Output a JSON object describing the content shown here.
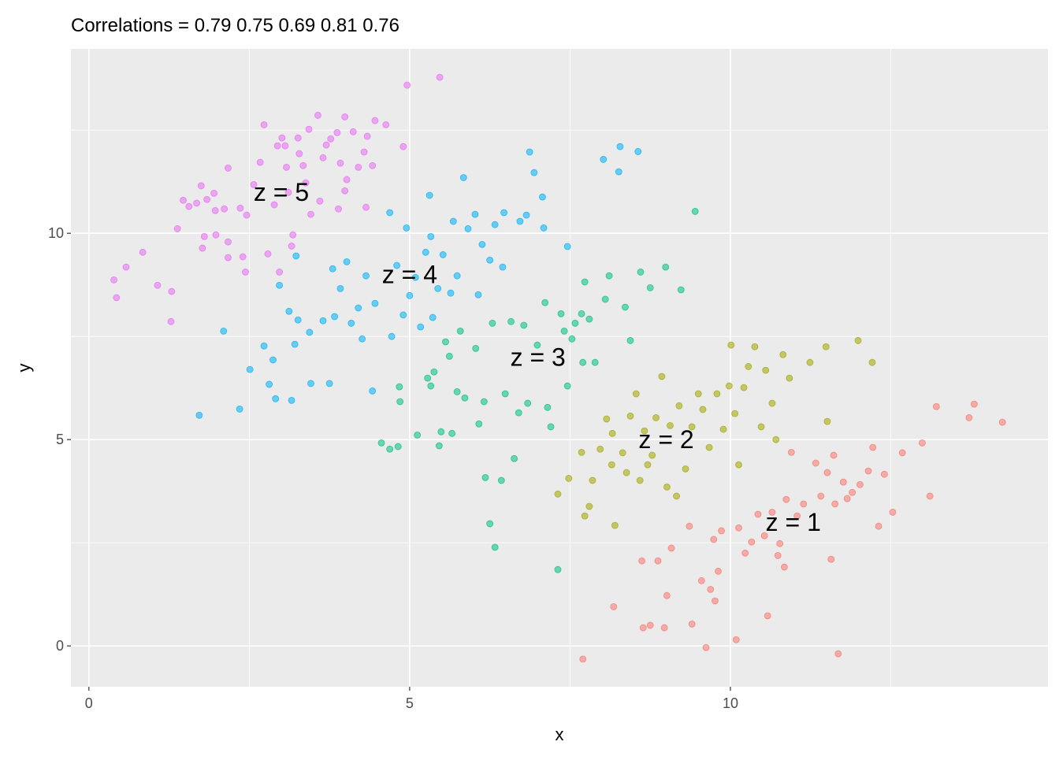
{
  "chart_data": {
    "type": "scatter",
    "title": "Correlations = 0.79 0.75 0.69 0.81 0.76",
    "xlabel": "x",
    "ylabel": "y",
    "xlim": [
      -0.28,
      14.95
    ],
    "ylim": [
      -0.99,
      14.47
    ],
    "x_ticks": [
      0,
      5,
      10
    ],
    "y_ticks": [
      0,
      5,
      10
    ],
    "x_minor": [
      2.5,
      7.5,
      12.5
    ],
    "y_minor": [
      2.5,
      7.5,
      12.5
    ],
    "grid": true,
    "background": "#EBEBEB",
    "series": [
      {
        "group": "z = 1",
        "color": "#F8766D",
        "label_pos": [
          10.98,
          3.0
        ],
        "points": [
          [
            7.7,
            -0.32
          ],
          [
            8.18,
            0.95
          ],
          [
            8.62,
            2.06
          ],
          [
            8.64,
            0.44
          ],
          [
            8.75,
            0.5
          ],
          [
            8.87,
            2.06
          ],
          [
            8.97,
            0.44
          ],
          [
            9.01,
            1.22
          ],
          [
            9.08,
            2.37
          ],
          [
            9.36,
            2.9
          ],
          [
            9.4,
            0.53
          ],
          [
            9.55,
            1.58
          ],
          [
            9.62,
            -0.04
          ],
          [
            9.69,
            1.37
          ],
          [
            9.74,
            2.58
          ],
          [
            9.76,
            1.09
          ],
          [
            9.81,
            1.81
          ],
          [
            9.86,
            2.79
          ],
          [
            10.09,
            0.15
          ],
          [
            10.13,
            2.86
          ],
          [
            10.23,
            2.25
          ],
          [
            10.33,
            2.52
          ],
          [
            10.43,
            3.19
          ],
          [
            10.53,
            2.67
          ],
          [
            10.58,
            0.73
          ],
          [
            10.65,
            3.24
          ],
          [
            10.74,
            2.19
          ],
          [
            10.77,
            2.48
          ],
          [
            10.84,
            1.91
          ],
          [
            10.87,
            3.55
          ],
          [
            10.95,
            4.69
          ],
          [
            11.04,
            3.15
          ],
          [
            11.14,
            3.44
          ],
          [
            11.33,
            4.43
          ],
          [
            11.41,
            3.63
          ],
          [
            11.51,
            4.2
          ],
          [
            11.57,
            2.1
          ],
          [
            11.63,
            3.44
          ],
          [
            11.68,
            -0.19
          ],
          [
            11.76,
            3.97
          ],
          [
            11.82,
            3.57
          ],
          [
            11.9,
            3.72
          ],
          [
            12.02,
            3.91
          ],
          [
            12.15,
            4.24
          ],
          [
            12.22,
            4.81
          ],
          [
            12.31,
            2.9
          ],
          [
            12.4,
            4.16
          ],
          [
            12.53,
            3.24
          ],
          [
            12.68,
            4.68
          ],
          [
            12.99,
            4.92
          ],
          [
            13.11,
            3.63
          ],
          [
            13.21,
            5.8
          ],
          [
            13.72,
            5.53
          ],
          [
            13.8,
            5.86
          ],
          [
            14.24,
            5.42
          ],
          [
            11.61,
            4.62
          ]
        ]
      },
      {
        "group": "z = 2",
        "color": "#A3A500",
        "label_pos": [
          9.0,
          5.0
        ],
        "points": [
          [
            7.31,
            3.68
          ],
          [
            7.48,
            4.06
          ],
          [
            7.68,
            4.69
          ],
          [
            7.73,
            3.15
          ],
          [
            7.8,
            3.38
          ],
          [
            7.85,
            4.01
          ],
          [
            7.97,
            4.77
          ],
          [
            8.07,
            5.5
          ],
          [
            8.16,
            5.15
          ],
          [
            8.2,
            2.92
          ],
          [
            8.32,
            4.68
          ],
          [
            8.38,
            4.2
          ],
          [
            8.44,
            5.57
          ],
          [
            8.53,
            6.11
          ],
          [
            8.59,
            4.01
          ],
          [
            8.66,
            5.21
          ],
          [
            8.71,
            4.39
          ],
          [
            8.78,
            4.62
          ],
          [
            8.84,
            5.53
          ],
          [
            8.93,
            6.53
          ],
          [
            9.01,
            3.85
          ],
          [
            9.06,
            5.34
          ],
          [
            9.16,
            3.63
          ],
          [
            9.2,
            5.82
          ],
          [
            9.3,
            4.29
          ],
          [
            9.4,
            5.31
          ],
          [
            9.5,
            6.11
          ],
          [
            9.57,
            5.73
          ],
          [
            9.67,
            4.81
          ],
          [
            9.79,
            6.11
          ],
          [
            9.89,
            5.25
          ],
          [
            9.98,
            6.3
          ],
          [
            10.07,
            5.63
          ],
          [
            10.13,
            4.39
          ],
          [
            10.21,
            6.26
          ],
          [
            10.28,
            6.77
          ],
          [
            10.38,
            7.25
          ],
          [
            10.48,
            5.31
          ],
          [
            10.55,
            6.68
          ],
          [
            10.65,
            5.88
          ],
          [
            10.71,
            5.0
          ],
          [
            10.82,
            7.06
          ],
          [
            10.92,
            6.49
          ],
          [
            11.24,
            6.87
          ],
          [
            11.49,
            7.25
          ],
          [
            11.51,
            5.44
          ],
          [
            11.99,
            7.4
          ],
          [
            12.21,
            6.87
          ],
          [
            10.01,
            7.29
          ],
          [
            8.15,
            4.39
          ]
        ]
      },
      {
        "group": "z = 3",
        "color": "#00BF7D",
        "label_pos": [
          7.0,
          7.0
        ],
        "points": [
          [
            4.56,
            4.92
          ],
          [
            4.69,
            4.77
          ],
          [
            4.82,
            4.83
          ],
          [
            4.84,
            6.28
          ],
          [
            4.85,
            5.92
          ],
          [
            5.12,
            5.11
          ],
          [
            5.28,
            6.49
          ],
          [
            5.33,
            6.3
          ],
          [
            5.38,
            6.64
          ],
          [
            5.46,
            4.85
          ],
          [
            5.49,
            5.19
          ],
          [
            5.56,
            7.37
          ],
          [
            5.62,
            7.02
          ],
          [
            5.66,
            5.15
          ],
          [
            5.74,
            6.16
          ],
          [
            5.79,
            7.63
          ],
          [
            5.86,
            6.01
          ],
          [
            6.03,
            7.21
          ],
          [
            6.08,
            5.38
          ],
          [
            6.16,
            5.92
          ],
          [
            6.18,
            4.08
          ],
          [
            6.25,
            2.96
          ],
          [
            6.29,
            7.82
          ],
          [
            6.33,
            2.39
          ],
          [
            6.43,
            4.01
          ],
          [
            6.49,
            6.11
          ],
          [
            6.58,
            7.86
          ],
          [
            6.63,
            4.54
          ],
          [
            6.7,
            5.65
          ],
          [
            6.78,
            7.77
          ],
          [
            6.84,
            5.88
          ],
          [
            6.99,
            7.29
          ],
          [
            7.11,
            8.32
          ],
          [
            7.15,
            5.78
          ],
          [
            7.2,
            5.31
          ],
          [
            7.31,
            1.85
          ],
          [
            7.36,
            8.05
          ],
          [
            7.41,
            7.63
          ],
          [
            7.46,
            6.3
          ],
          [
            7.53,
            7.44
          ],
          [
            7.58,
            7.82
          ],
          [
            7.68,
            8.05
          ],
          [
            7.7,
            6.87
          ],
          [
            7.73,
            8.82
          ],
          [
            7.8,
            7.92
          ],
          [
            7.89,
            6.87
          ],
          [
            8.05,
            8.4
          ],
          [
            8.11,
            8.97
          ],
          [
            8.36,
            8.21
          ],
          [
            8.44,
            7.4
          ],
          [
            8.6,
            9.06
          ],
          [
            8.75,
            8.68
          ],
          [
            8.99,
            9.18
          ],
          [
            9.23,
            8.63
          ],
          [
            9.45,
            10.53
          ]
        ]
      },
      {
        "group": "z = 4",
        "color": "#00B0F6",
        "label_pos": [
          5.0,
          9.0
        ],
        "points": [
          [
            1.72,
            5.59
          ],
          [
            2.1,
            7.63
          ],
          [
            2.35,
            5.74
          ],
          [
            2.51,
            6.7
          ],
          [
            2.73,
            7.27
          ],
          [
            2.81,
            6.34
          ],
          [
            2.87,
            6.93
          ],
          [
            2.91,
            5.99
          ],
          [
            2.97,
            8.74
          ],
          [
            3.12,
            8.11
          ],
          [
            3.16,
            5.95
          ],
          [
            3.21,
            7.31
          ],
          [
            3.23,
            9.45
          ],
          [
            3.26,
            7.9
          ],
          [
            3.44,
            7.6
          ],
          [
            3.46,
            6.36
          ],
          [
            3.65,
            7.88
          ],
          [
            3.75,
            6.36
          ],
          [
            3.8,
            9.14
          ],
          [
            3.83,
            7.98
          ],
          [
            3.92,
            8.66
          ],
          [
            4.02,
            9.31
          ],
          [
            4.09,
            7.82
          ],
          [
            4.2,
            8.19
          ],
          [
            4.26,
            7.44
          ],
          [
            4.32,
            8.97
          ],
          [
            4.42,
            6.18
          ],
          [
            4.46,
            8.3
          ],
          [
            4.69,
            10.5
          ],
          [
            4.72,
            7.5
          ],
          [
            4.8,
            9.22
          ],
          [
            4.9,
            8.02
          ],
          [
            4.95,
            10.13
          ],
          [
            5.0,
            8.49
          ],
          [
            5.09,
            8.93
          ],
          [
            5.17,
            7.73
          ],
          [
            5.25,
            9.54
          ],
          [
            5.31,
            10.92
          ],
          [
            5.33,
            9.92
          ],
          [
            5.36,
            7.96
          ],
          [
            5.44,
            8.66
          ],
          [
            5.52,
            9.48
          ],
          [
            5.64,
            8.55
          ],
          [
            5.68,
            10.29
          ],
          [
            5.74,
            8.97
          ],
          [
            5.84,
            11.35
          ],
          [
            5.91,
            10.11
          ],
          [
            6.02,
            10.46
          ],
          [
            6.07,
            8.51
          ],
          [
            6.13,
            9.73
          ],
          [
            6.25,
            9.35
          ],
          [
            6.33,
            10.21
          ],
          [
            6.45,
            9.18
          ],
          [
            6.47,
            10.5
          ],
          [
            6.72,
            10.29
          ],
          [
            6.82,
            10.44
          ],
          [
            6.87,
            11.97
          ],
          [
            6.94,
            11.47
          ],
          [
            7.07,
            10.88
          ],
          [
            7.09,
            10.13
          ],
          [
            7.46,
            9.68
          ],
          [
            8.02,
            11.79
          ],
          [
            8.26,
            11.49
          ],
          [
            8.28,
            12.1
          ],
          [
            8.56,
            11.98
          ]
        ]
      },
      {
        "group": "z = 5",
        "color": "#E76BF3",
        "label_pos": [
          3.0,
          11.0
        ],
        "points": [
          [
            4.96,
            13.59
          ],
          [
            5.47,
            13.78
          ],
          [
            0.39,
            8.87
          ],
          [
            0.43,
            8.44
          ],
          [
            0.58,
            9.18
          ],
          [
            0.84,
            9.54
          ],
          [
            1.07,
            8.74
          ],
          [
            1.28,
            7.86
          ],
          [
            1.29,
            8.59
          ],
          [
            1.38,
            10.11
          ],
          [
            1.47,
            10.8
          ],
          [
            1.56,
            10.65
          ],
          [
            1.68,
            10.73
          ],
          [
            1.75,
            11.15
          ],
          [
            1.77,
            9.64
          ],
          [
            1.8,
            9.92
          ],
          [
            1.84,
            10.82
          ],
          [
            1.95,
            10.97
          ],
          [
            1.97,
            10.55
          ],
          [
            1.98,
            9.96
          ],
          [
            2.11,
            10.59
          ],
          [
            2.17,
            11.58
          ],
          [
            2.17,
            9.79
          ],
          [
            2.17,
            9.41
          ],
          [
            2.36,
            10.61
          ],
          [
            2.4,
            9.43
          ],
          [
            2.44,
            9.06
          ],
          [
            2.46,
            10.44
          ],
          [
            2.57,
            11.18
          ],
          [
            2.67,
            11.72
          ],
          [
            2.73,
            12.63
          ],
          [
            2.79,
            9.5
          ],
          [
            2.89,
            10.69
          ],
          [
            2.94,
            12.12
          ],
          [
            3.01,
            12.31
          ],
          [
            3.06,
            12.12
          ],
          [
            3.08,
            11.6
          ],
          [
            3.11,
            10.99
          ],
          [
            3.18,
            9.96
          ],
          [
            3.26,
            12.31
          ],
          [
            3.28,
            11.93
          ],
          [
            3.34,
            11.64
          ],
          [
            3.38,
            11.22
          ],
          [
            3.43,
            12.52
          ],
          [
            3.46,
            10.46
          ],
          [
            3.57,
            12.86
          ],
          [
            3.65,
            11.83
          ],
          [
            3.7,
            12.14
          ],
          [
            3.77,
            12.29
          ],
          [
            3.87,
            12.44
          ],
          [
            3.89,
            10.59
          ],
          [
            3.92,
            11.7
          ],
          [
            3.99,
            12.82
          ],
          [
            3.99,
            11.03
          ],
          [
            4.02,
            11.3
          ],
          [
            4.12,
            12.46
          ],
          [
            4.2,
            11.6
          ],
          [
            4.29,
            11.97
          ],
          [
            4.32,
            10.63
          ],
          [
            4.34,
            12.35
          ],
          [
            4.42,
            11.64
          ],
          [
            4.46,
            12.73
          ],
          [
            4.63,
            12.63
          ],
          [
            4.9,
            12.1
          ],
          [
            2.97,
            9.06
          ],
          [
            3.16,
            9.69
          ],
          [
            3.6,
            10.78
          ]
        ]
      }
    ]
  }
}
